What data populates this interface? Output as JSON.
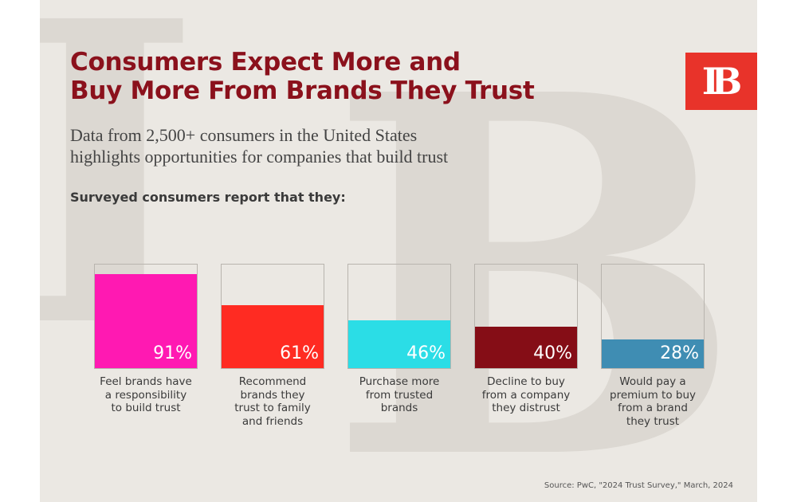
{
  "header": {
    "title_lines": [
      "Consumers Expect More and",
      "Buy More From Brands They Trust"
    ],
    "subtitle_lines": [
      "Data from 2,500+ consumers in the United States",
      "highlights opportunities for companies that build trust"
    ],
    "intro": "Surveyed consumers report that they:"
  },
  "logo": {
    "text": "IB",
    "color": "#e8332a"
  },
  "colors": {
    "title": "#8b111c",
    "background": "#ebe8e3"
  },
  "chart_data": {
    "type": "bar",
    "title": "Surveyed consumers report that they:",
    "unit": "%",
    "ylim": [
      0,
      100
    ],
    "categories": [
      "Feel brands have a responsibility to build trust",
      "Recommend brands they trust to family and friends",
      "Purchase more from trusted brands",
      "Decline to buy from a company they distrust",
      "Would pay a premium to buy from a brand they trust"
    ],
    "values": [
      91,
      61,
      46,
      40,
      28
    ],
    "value_labels": [
      "91%",
      "61%",
      "46%",
      "40%",
      "28%"
    ],
    "caption_lines": [
      [
        "Feel brands have",
        "a responsibility",
        "to build trust"
      ],
      [
        "Recommend",
        "brands they",
        "trust to family",
        "and friends"
      ],
      [
        "Purchase more",
        "from trusted",
        "brands"
      ],
      [
        "Decline to buy",
        "from a company",
        "they distrust"
      ],
      [
        "Would pay a",
        "premium to buy",
        "from a brand",
        "they trust"
      ]
    ],
    "colors": [
      "#ff19b2",
      "#ff2b22",
      "#2bdde6",
      "#850d16",
      "#3f8db3"
    ]
  },
  "footer": {
    "source": "Source: PwC, \"2024 Trust Survey,\" March, 2024"
  }
}
